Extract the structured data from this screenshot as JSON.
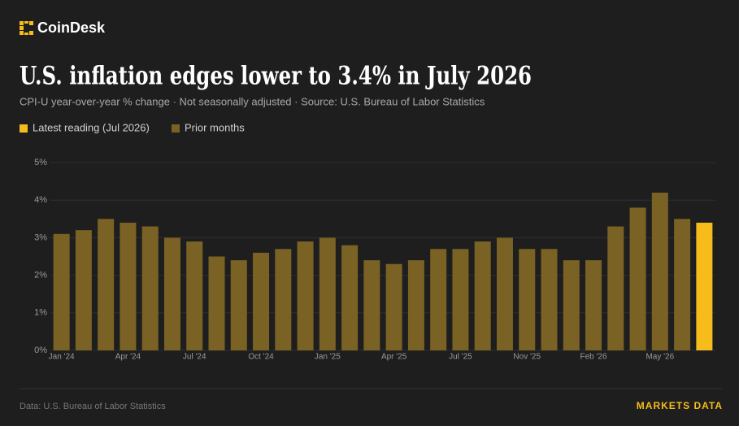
{
  "brand": "CoinDesk",
  "footer": {
    "source": "Data: U.S. Bureau of Labor Statistics",
    "tag": "MARKETS DATA"
  },
  "chart_data": {
    "type": "bar",
    "title": "U.S. inflation edges lower to 3.4% in July 2026",
    "subtitle": "CPI-U year-over-year % change · Not seasonally adjusted · Source: U.S. Bureau of Labor Statistics",
    "legend": [
      {
        "name": "Latest reading (Jul 2026)",
        "color": "#f5bc1c"
      },
      {
        "name": "Prior months",
        "color": "#7a6224"
      }
    ],
    "categories": [
      "Jan '24",
      null,
      null,
      "Apr '24",
      null,
      null,
      "Jul '24",
      null,
      null,
      "Oct '24",
      null,
      null,
      "Jan '25",
      null,
      null,
      "Apr '25",
      null,
      null,
      "Jul '25",
      null,
      null,
      "Nov '25",
      null,
      null,
      "Feb '26",
      null,
      null,
      "May '26",
      null,
      null
    ],
    "values": [
      3.1,
      3.2,
      3.5,
      3.4,
      3.3,
      3.0,
      2.9,
      2.5,
      2.4,
      2.6,
      2.7,
      2.9,
      3.0,
      2.8,
      2.4,
      2.3,
      2.4,
      2.7,
      2.7,
      2.9,
      3.0,
      2.7,
      2.7,
      2.4,
      2.4,
      3.3,
      3.8,
      4.2,
      3.5,
      3.4
    ],
    "colors": [
      "#7a6224",
      "#7a6224",
      "#7a6224",
      "#7a6224",
      "#7a6224",
      "#7a6224",
      "#7a6224",
      "#7a6224",
      "#7a6224",
      "#7a6224",
      "#7a6224",
      "#7a6224",
      "#7a6224",
      "#7a6224",
      "#7a6224",
      "#7a6224",
      "#7a6224",
      "#7a6224",
      "#7a6224",
      "#7a6224",
      "#7a6224",
      "#7a6224",
      "#7a6224",
      "#7a6224",
      "#7a6224",
      "#7a6224",
      "#7a6224",
      "#7a6224",
      "#7a6224",
      "#f5bc1c"
    ],
    "ylim": [
      0,
      5
    ],
    "yticks": [
      {
        "value": 0,
        "label": "0%"
      },
      {
        "value": 1,
        "label": "1%"
      },
      {
        "value": 2,
        "label": "2%"
      },
      {
        "value": 3,
        "label": "3%"
      },
      {
        "value": 4,
        "label": "4%"
      },
      {
        "value": 5,
        "label": "5%"
      }
    ],
    "grid": true
  }
}
